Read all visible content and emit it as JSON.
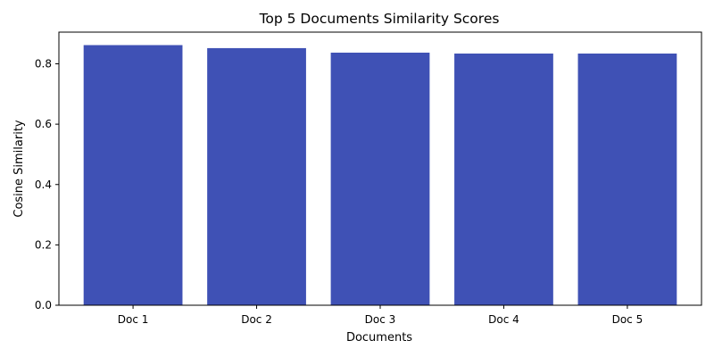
{
  "chart_data": {
    "type": "bar",
    "title": "Top 5 Documents Similarity Scores",
    "xlabel": "Documents",
    "ylabel": "Cosine Similarity",
    "categories": [
      "Doc 1",
      "Doc 2",
      "Doc 3",
      "Doc 4",
      "Doc 5"
    ],
    "values": [
      0.862,
      0.852,
      0.837,
      0.834,
      0.834
    ],
    "ylim": [
      0,
      0.905
    ],
    "yticks": [
      0.0,
      0.2,
      0.4,
      0.6,
      0.8
    ],
    "ytick_labels": [
      "0.0",
      "0.2",
      "0.4",
      "0.6",
      "0.8"
    ],
    "bar_color": "#3f51b5",
    "grid": false,
    "legend": "none"
  }
}
